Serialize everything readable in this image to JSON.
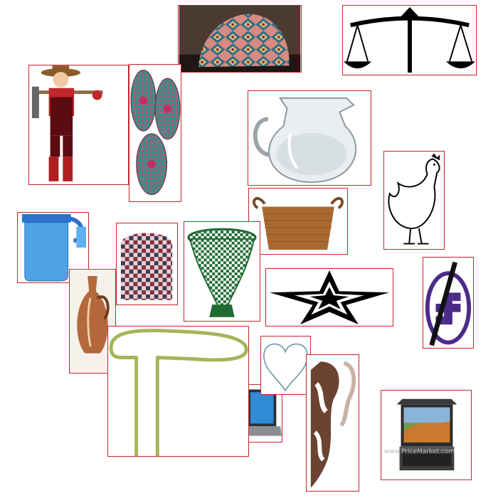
{
  "canvas": {
    "background": "#ffffff",
    "border_color": "#c8232c"
  },
  "tiles": [
    {
      "name": "patterned-cloth-mask-image"
    },
    {
      "name": "balance-scale-icon"
    },
    {
      "name": "farmer-with-hoe-image"
    },
    {
      "name": "woven-fans-image"
    },
    {
      "name": "glass-water-jug-image"
    },
    {
      "name": "chicken-drawing-image"
    },
    {
      "name": "blue-plastic-jug-image"
    },
    {
      "name": "woven-basket-image"
    },
    {
      "name": "woven-tea-cozy-image"
    },
    {
      "name": "green-woven-basket-image"
    },
    {
      "name": "star-icon"
    },
    {
      "name": "crossed-swastika-sign-icon"
    },
    {
      "name": "copper-vase-image"
    },
    {
      "name": "cane-handle-outline-image"
    },
    {
      "name": "heart-outline-icon"
    },
    {
      "name": "laptop-image"
    },
    {
      "name": "cow-hide-image"
    },
    {
      "name": "rack-console-monitor-image"
    }
  ],
  "watermark": "www.PriceMarket.com"
}
